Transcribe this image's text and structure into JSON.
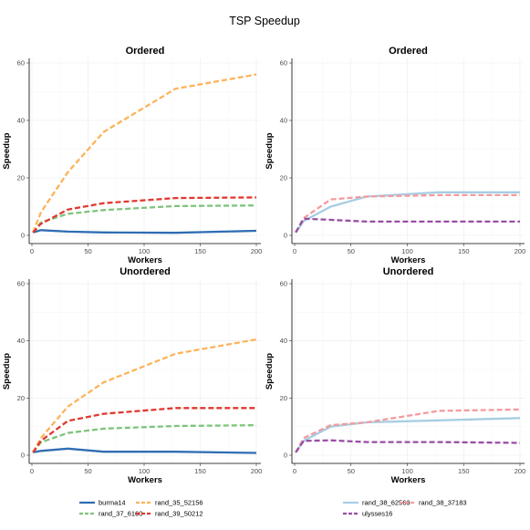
{
  "figure": {
    "title": "TSP  Speedup"
  },
  "chart_data": [
    {
      "type": "line",
      "title": "Ordered",
      "xlabel": "Workers",
      "ylabel": "Speedup",
      "xlim": [
        0,
        200
      ],
      "ylim": [
        0,
        60
      ],
      "xticks": [
        0,
        50,
        100,
        150,
        200
      ],
      "yticks": [
        0,
        20,
        40,
        60
      ],
      "grid": true,
      "series": [
        {
          "name": "burma14",
          "color": "#2f6db3",
          "dash": "solid",
          "x": [
            1,
            8,
            32,
            64,
            128,
            200
          ],
          "y": [
            1,
            1.8,
            1.3,
            1.0,
            0.9,
            1.6
          ]
        },
        {
          "name": "rand_37_6160",
          "color": "#7ec47a",
          "dash": "dashed",
          "x": [
            1,
            8,
            32,
            64,
            128,
            200
          ],
          "y": [
            1,
            4.5,
            7.5,
            8.8,
            10.2,
            10.4
          ]
        },
        {
          "name": "rand_35_52156",
          "color": "#fdb35a",
          "dash": "dashed",
          "x": [
            1,
            8,
            32,
            64,
            128,
            200
          ],
          "y": [
            1,
            8,
            22,
            36,
            51,
            56
          ]
        },
        {
          "name": "rand_39_50212",
          "color": "#e0392f",
          "dash": "dashed",
          "x": [
            1,
            8,
            32,
            64,
            128,
            200
          ],
          "y": [
            1,
            4,
            9,
            11.2,
            13,
            13.2
          ]
        }
      ]
    },
    {
      "type": "line",
      "title": "Ordered",
      "xlabel": "Workers",
      "ylabel": "Speedup",
      "xlim": [
        0,
        200
      ],
      "ylim": [
        0,
        60
      ],
      "xticks": [
        0,
        50,
        100,
        150,
        200
      ],
      "yticks": [
        0,
        20,
        40,
        60
      ],
      "grid": true,
      "series": [
        {
          "name": "rand_38_62563",
          "color": "#a6cee3",
          "dash": "solid",
          "x": [
            1,
            8,
            32,
            64,
            128,
            200
          ],
          "y": [
            1,
            5,
            10,
            13.5,
            15,
            15
          ]
        },
        {
          "name": "rand_38_37183",
          "color": "#f39b9f",
          "dash": "dashed",
          "x": [
            1,
            8,
            32,
            64,
            128,
            200
          ],
          "y": [
            1,
            6,
            12.5,
            13.5,
            14,
            14
          ]
        },
        {
          "name": "ulysses16",
          "color": "#984ea3",
          "dash": "dashed",
          "x": [
            1,
            8,
            32,
            64,
            128,
            200
          ],
          "y": [
            1,
            5.8,
            5.4,
            4.8,
            4.8,
            4.8
          ]
        }
      ]
    },
    {
      "type": "line",
      "title": "Unordered",
      "xlabel": "Workers",
      "ylabel": "Speedup",
      "xlim": [
        0,
        200
      ],
      "ylim": [
        0,
        60
      ],
      "xticks": [
        0,
        50,
        100,
        150,
        200
      ],
      "yticks": [
        0,
        20,
        40,
        60
      ],
      "grid": true,
      "series": [
        {
          "name": "burma14",
          "color": "#2f6db3",
          "dash": "solid",
          "x": [
            1,
            8,
            32,
            64,
            128,
            200
          ],
          "y": [
            1,
            1.5,
            2.3,
            1.2,
            1.2,
            0.8
          ]
        },
        {
          "name": "rand_37_6160",
          "color": "#7ec47a",
          "dash": "dashed",
          "x": [
            1,
            8,
            32,
            64,
            128,
            200
          ],
          "y": [
            1,
            4.5,
            7.8,
            9.3,
            10.2,
            10.5
          ]
        },
        {
          "name": "rand_35_52156",
          "color": "#fdb35a",
          "dash": "dashed",
          "x": [
            1,
            8,
            32,
            64,
            128,
            200
          ],
          "y": [
            1,
            6,
            17,
            25.5,
            35.5,
            40.5
          ]
        },
        {
          "name": "rand_39_50212",
          "color": "#e0392f",
          "dash": "dashed",
          "x": [
            1,
            8,
            32,
            64,
            128,
            200
          ],
          "y": [
            1,
            5,
            12,
            14.5,
            16.5,
            16.5
          ]
        }
      ]
    },
    {
      "type": "line",
      "title": "Unordered",
      "xlabel": "Workers",
      "ylabel": "Speedup",
      "xlim": [
        0,
        200
      ],
      "ylim": [
        0,
        60
      ],
      "xticks": [
        0,
        50,
        100,
        150,
        200
      ],
      "yticks": [
        0,
        20,
        40,
        60
      ],
      "grid": true,
      "series": [
        {
          "name": "rand_38_62563",
          "color": "#a6cee3",
          "dash": "solid",
          "x": [
            1,
            8,
            32,
            64,
            128,
            200
          ],
          "y": [
            1,
            5,
            10,
            11.5,
            12.2,
            13
          ]
        },
        {
          "name": "rand_38_37183",
          "color": "#f39b9f",
          "dash": "dashed",
          "x": [
            1,
            8,
            32,
            64,
            128,
            200
          ],
          "y": [
            1,
            6,
            10.5,
            11.5,
            15.5,
            16
          ]
        },
        {
          "name": "ulysses16",
          "color": "#984ea3",
          "dash": "dashed",
          "x": [
            1,
            8,
            32,
            64,
            128,
            200
          ],
          "y": [
            1,
            5,
            5.2,
            4.6,
            4.6,
            4.3
          ]
        }
      ]
    }
  ],
  "legends": [
    {
      "name": "legend-left",
      "entries": [
        {
          "label": "burma14",
          "color": "#2f6db3",
          "dash": "solid"
        },
        {
          "label": "rand_35_52156",
          "color": "#fdb35a",
          "dash": "dashed"
        },
        {
          "label": "rand_37_6160",
          "color": "#7ec47a",
          "dash": "dashed"
        },
        {
          "label": "rand_39_50212",
          "color": "#e0392f",
          "dash": "dashed"
        }
      ]
    },
    {
      "name": "legend-right",
      "entries": [
        {
          "label": "rand_38_62563",
          "color": "#a6cee3",
          "dash": "solid"
        },
        {
          "label": "rand_38_37183",
          "color": "#f39b9f",
          "dash": "dashed"
        },
        {
          "label": "ulysses16",
          "color": "#984ea3",
          "dash": "dashed"
        }
      ]
    }
  ]
}
